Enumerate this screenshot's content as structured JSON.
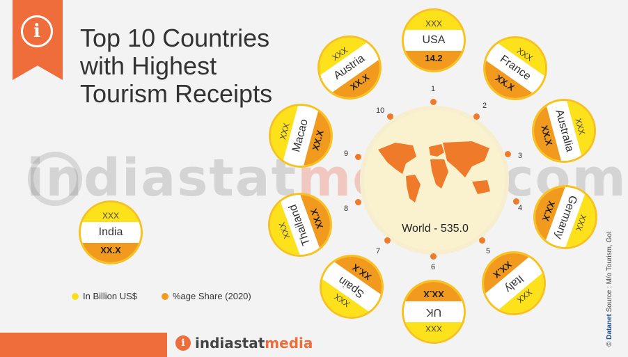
{
  "title": "Top 10 Countries with Highest Tourism Receipts",
  "watermark": {
    "grey": "indiastat",
    "red": "media",
    "rest": ".com"
  },
  "center": {
    "label": "World - 535.0"
  },
  "india": {
    "top": "XXX",
    "name": "India",
    "bottom": "XX.X"
  },
  "countries": [
    {
      "rank": "1",
      "top": "XXX",
      "name": "USA",
      "bottom": "14.2"
    },
    {
      "rank": "2",
      "top": "XXX",
      "name": "France",
      "bottom": "XX.X"
    },
    {
      "rank": "3",
      "top": "XXX",
      "name": "Australia",
      "bottom": "XX.X"
    },
    {
      "rank": "4",
      "top": "XXX",
      "name": "Germany",
      "bottom": "XX.X"
    },
    {
      "rank": "5",
      "top": "XXX",
      "name": "Italy",
      "bottom": "XX.X"
    },
    {
      "rank": "6",
      "top": "XXX",
      "name": "UK",
      "bottom": "XX.X"
    },
    {
      "rank": "7",
      "top": "XXX",
      "name": "Spain",
      "bottom": "XX.X"
    },
    {
      "rank": "8",
      "top": "XXX",
      "name": "Thailand",
      "bottom": "XX.X"
    },
    {
      "rank": "9",
      "top": "XXX",
      "name": "Macao",
      "bottom": "XX.X"
    },
    {
      "rank": "10",
      "top": "XXX",
      "name": "Austria",
      "bottom": "XX.X"
    }
  ],
  "legend": [
    {
      "label": "In Billion US$",
      "color": "#f7e01b"
    },
    {
      "label": "%age Share (2020)",
      "color": "#f19a1e"
    }
  ],
  "footer": {
    "brand_a": "indiastat",
    "brand_b": "media"
  },
  "source": {
    "brand": "Datanet",
    "text": "Source : M/o Tourism, GoI"
  },
  "copyright": "©"
}
